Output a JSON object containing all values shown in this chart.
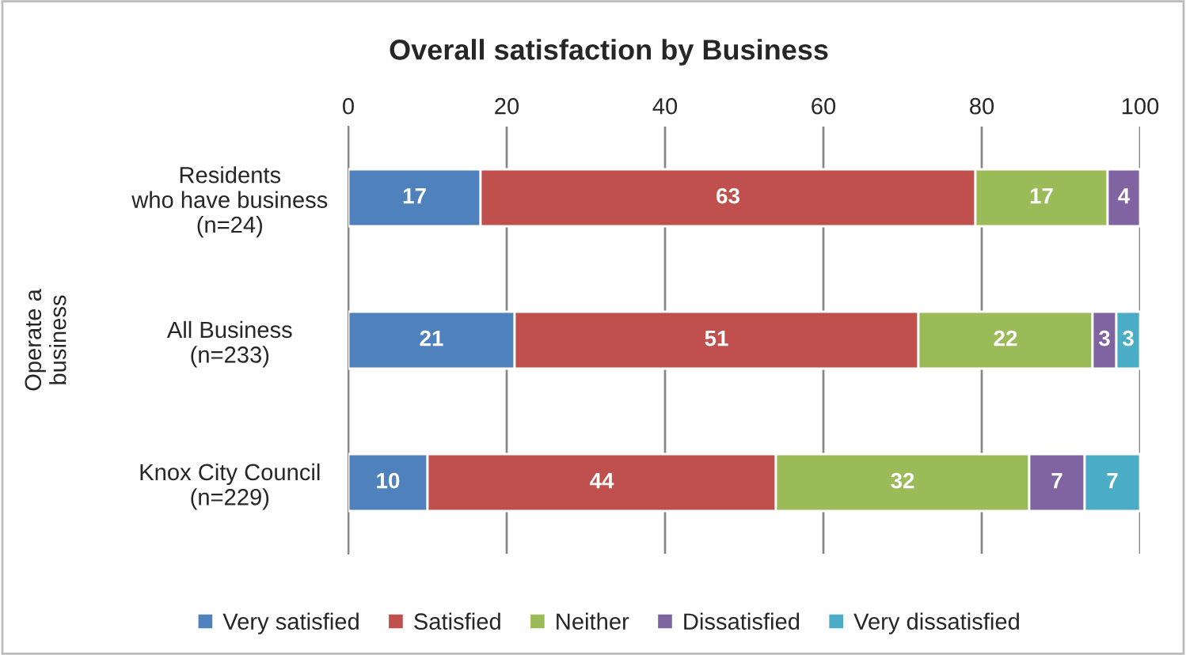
{
  "chart_data": {
    "type": "bar",
    "orientation": "horizontal",
    "stacked": true,
    "title": "Overall satisfaction by Business",
    "ylabel": "Operate a\nbusiness",
    "categories": [
      "Residents\nwho have business\n(n=24)",
      "All Business\n(n=233)",
      "Knox City Council\n(n=229)"
    ],
    "series": [
      {
        "name": "Very satisfied",
        "color": "#4f81bd",
        "values": [
          16.7,
          21,
          10
        ],
        "value_labels": [
          "17",
          "21",
          "10"
        ]
      },
      {
        "name": "Satisfied",
        "color": "#c0504d",
        "values": [
          62.5,
          51,
          44
        ],
        "value_labels": [
          "63",
          "51",
          "44"
        ]
      },
      {
        "name": "Neither",
        "color": "#9bbb59",
        "values": [
          16.7,
          22,
          32
        ],
        "value_labels": [
          "17",
          "22",
          "32"
        ]
      },
      {
        "name": "Dissatisfied",
        "color": "#8064a2",
        "values": [
          4.1,
          3,
          7
        ],
        "value_labels": [
          "4",
          "3",
          "7"
        ]
      },
      {
        "name": "Very dissatisfied",
        "color": "#4bacc6",
        "values": [
          null,
          3,
          7
        ],
        "value_labels": [
          null,
          "3",
          "7"
        ]
      }
    ],
    "xlim": [
      0,
      100
    ],
    "xticks": [
      0,
      20,
      40,
      60,
      80,
      100
    ],
    "grid": "x",
    "legend": "bottom"
  }
}
